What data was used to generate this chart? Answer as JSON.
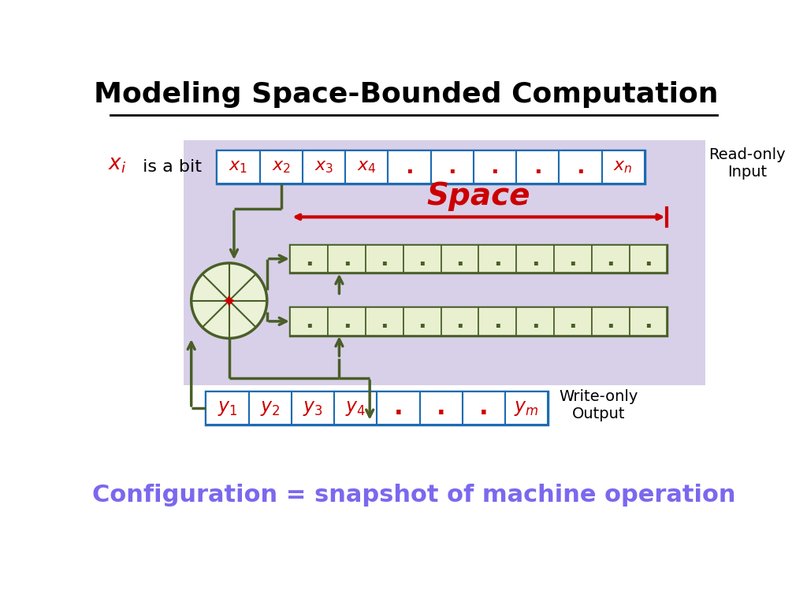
{
  "title": "Modeling Space-Bounded Computation",
  "subtitle": "Configuration = snapshot of machine operation",
  "subtitle_color": "#7B68EE",
  "title_fontsize": 26,
  "subtitle_fontsize": 22,
  "bg_color": "#ffffff",
  "gray_box_color": "#D8D0E8",
  "tape_fill_color": "#E8F0D0",
  "tape_border_color": "#4A5E28",
  "circle_fill_color": "#EBF2D8",
  "circle_border_color": "#4A5E28",
  "input_tape_labels": [
    "x_1",
    "x_2",
    "x_3",
    "x_4",
    ".",
    ".",
    ".",
    ".",
    ".",
    "x_n"
  ],
  "output_tape_labels": [
    "y_1",
    "y_2",
    "y_3",
    "y_4",
    ".",
    ".",
    ".",
    "y_m"
  ],
  "n_work_cells": 10,
  "arrow_color": "#4A5E28",
  "space_arrow_color": "#CC0000",
  "space_label_color": "#CC0000",
  "red_color": "#CC0000",
  "input_border_color": "#1E6BB0",
  "output_border_color": "#1E6BB0",
  "read_only_text": "Read-only\nInput",
  "write_only_text": "Write-only\nOutput",
  "figw": 10.24,
  "figh": 7.68
}
